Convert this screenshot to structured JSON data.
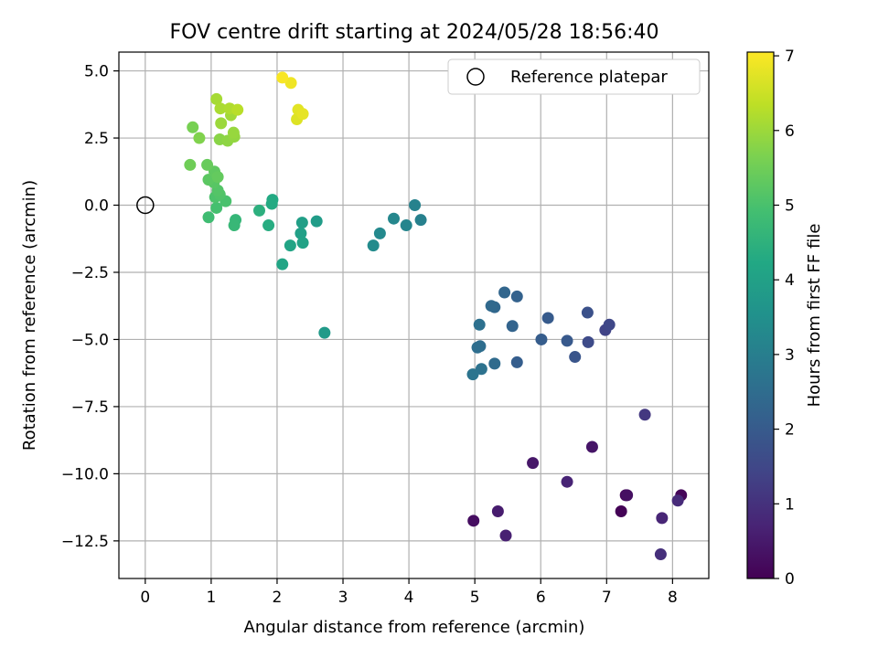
{
  "chart_data": {
    "type": "scatter",
    "title": "FOV centre drift starting at 2024/05/28 18:56:40",
    "xlabel": "Angular distance from reference (arcmin)",
    "ylabel": "Rotation from reference (arcmin)",
    "xlim": [
      -0.4,
      8.55
    ],
    "ylim": [
      -13.9,
      5.7
    ],
    "xticks": [
      0,
      1,
      2,
      3,
      4,
      5,
      6,
      7,
      8
    ],
    "xtick_labels": [
      "0",
      "1",
      "2",
      "3",
      "4",
      "5",
      "6",
      "7",
      "8"
    ],
    "yticks": [
      5.0,
      2.5,
      0.0,
      -2.5,
      -5.0,
      -7.5,
      -10.0,
      -12.5
    ],
    "ytick_labels": [
      "5.0",
      "2.5",
      "0.0",
      "−2.5",
      "−5.0",
      "−7.5",
      "−10.0",
      "−12.5"
    ],
    "grid": true,
    "legend": {
      "placement": "upper-right",
      "entries": [
        "Reference platepar"
      ]
    },
    "reference_point": {
      "x": 0,
      "y": 0,
      "label": "Reference platepar"
    },
    "colorbar": {
      "label": "Hours from first FF file",
      "colormap": "viridis",
      "range": [
        0,
        7.05
      ],
      "ticks": [
        0,
        1,
        2,
        3,
        4,
        5,
        6,
        7
      ],
      "tick_labels": [
        "0",
        "1",
        "2",
        "3",
        "4",
        "5",
        "6",
        "7"
      ]
    },
    "points": [
      {
        "x": 7.22,
        "y": -11.4,
        "c": 0.05
      },
      {
        "x": 8.13,
        "y": -10.8,
        "c": 0.1
      },
      {
        "x": 7.29,
        "y": -10.8,
        "c": 0.15
      },
      {
        "x": 4.98,
        "y": -11.75,
        "c": 0.25
      },
      {
        "x": 7.31,
        "y": -10.8,
        "c": 0.3
      },
      {
        "x": 6.78,
        "y": -9.0,
        "c": 0.4
      },
      {
        "x": 5.88,
        "y": -9.6,
        "c": 0.45
      },
      {
        "x": 5.35,
        "y": -11.4,
        "c": 0.55
      },
      {
        "x": 5.47,
        "y": -12.3,
        "c": 0.65
      },
      {
        "x": 6.4,
        "y": -10.3,
        "c": 0.7
      },
      {
        "x": 7.84,
        "y": -11.65,
        "c": 0.75
      },
      {
        "x": 8.08,
        "y": -11.0,
        "c": 0.85
      },
      {
        "x": 7.82,
        "y": -13.0,
        "c": 0.95
      },
      {
        "x": 7.58,
        "y": -7.8,
        "c": 1.15
      },
      {
        "x": 6.98,
        "y": -4.65,
        "c": 1.4
      },
      {
        "x": 7.04,
        "y": -4.45,
        "c": 1.5
      },
      {
        "x": 6.72,
        "y": -5.1,
        "c": 1.6
      },
      {
        "x": 6.71,
        "y": -4.0,
        "c": 1.75
      },
      {
        "x": 6.52,
        "y": -5.65,
        "c": 1.85
      },
      {
        "x": 6.4,
        "y": -5.05,
        "c": 1.95
      },
      {
        "x": 6.11,
        "y": -4.2,
        "c": 2.0
      },
      {
        "x": 6.01,
        "y": -5.0,
        "c": 2.05
      },
      {
        "x": 5.64,
        "y": -5.85,
        "c": 2.1
      },
      {
        "x": 5.64,
        "y": -3.4,
        "c": 2.2
      },
      {
        "x": 5.57,
        "y": -4.5,
        "c": 2.25
      },
      {
        "x": 5.45,
        "y": -3.25,
        "c": 2.3
      },
      {
        "x": 5.3,
        "y": -3.8,
        "c": 2.35
      },
      {
        "x": 5.25,
        "y": -3.75,
        "c": 2.4
      },
      {
        "x": 5.3,
        "y": -5.9,
        "c": 2.45
      },
      {
        "x": 5.08,
        "y": -5.25,
        "c": 2.5
      },
      {
        "x": 5.04,
        "y": -5.3,
        "c": 2.55
      },
      {
        "x": 5.07,
        "y": -4.45,
        "c": 2.6
      },
      {
        "x": 5.1,
        "y": -6.1,
        "c": 2.65
      },
      {
        "x": 4.97,
        "y": -6.3,
        "c": 2.7
      },
      {
        "x": 4.18,
        "y": -0.55,
        "c": 3.05
      },
      {
        "x": 4.09,
        "y": 0.0,
        "c": 3.1
      },
      {
        "x": 3.96,
        "y": -0.75,
        "c": 3.2
      },
      {
        "x": 3.77,
        "y": -0.5,
        "c": 3.25
      },
      {
        "x": 3.56,
        "y": -1.05,
        "c": 3.3
      },
      {
        "x": 3.46,
        "y": -1.5,
        "c": 3.35
      },
      {
        "x": 2.72,
        "y": -4.75,
        "c": 3.8
      },
      {
        "x": 2.6,
        "y": -0.6,
        "c": 3.85
      },
      {
        "x": 2.38,
        "y": -0.65,
        "c": 3.95
      },
      {
        "x": 2.36,
        "y": -1.05,
        "c": 4.0
      },
      {
        "x": 2.39,
        "y": -1.4,
        "c": 4.05
      },
      {
        "x": 2.2,
        "y": -1.5,
        "c": 4.1
      },
      {
        "x": 2.08,
        "y": -2.2,
        "c": 4.15
      },
      {
        "x": 1.93,
        "y": 0.2,
        "c": 4.25
      },
      {
        "x": 1.92,
        "y": 0.05,
        "c": 4.3
      },
      {
        "x": 1.87,
        "y": -0.75,
        "c": 4.35
      },
      {
        "x": 1.73,
        "y": -0.2,
        "c": 4.45
      },
      {
        "x": 1.37,
        "y": -0.55,
        "c": 4.65
      },
      {
        "x": 1.35,
        "y": -0.75,
        "c": 4.7
      },
      {
        "x": 0.96,
        "y": -0.45,
        "c": 4.85
      },
      {
        "x": 1.08,
        "y": -0.1,
        "c": 4.95
      },
      {
        "x": 1.22,
        "y": 0.15,
        "c": 5.0
      },
      {
        "x": 1.06,
        "y": 0.3,
        "c": 5.05
      },
      {
        "x": 1.13,
        "y": 0.4,
        "c": 5.1
      },
      {
        "x": 1.1,
        "y": 0.55,
        "c": 5.15
      },
      {
        "x": 1.04,
        "y": 0.85,
        "c": 5.2
      },
      {
        "x": 0.96,
        "y": 0.95,
        "c": 5.25
      },
      {
        "x": 1.05,
        "y": 1.25,
        "c": 5.3
      },
      {
        "x": 1.1,
        "y": 1.05,
        "c": 5.35
      },
      {
        "x": 0.94,
        "y": 1.5,
        "c": 5.4
      },
      {
        "x": 0.68,
        "y": 1.5,
        "c": 5.5
      },
      {
        "x": 0.72,
        "y": 2.9,
        "c": 5.6
      },
      {
        "x": 0.82,
        "y": 2.5,
        "c": 5.7
      },
      {
        "x": 1.13,
        "y": 2.45,
        "c": 5.8
      },
      {
        "x": 1.25,
        "y": 2.4,
        "c": 5.85
      },
      {
        "x": 1.35,
        "y": 2.55,
        "c": 5.9
      },
      {
        "x": 1.34,
        "y": 2.7,
        "c": 5.95
      },
      {
        "x": 1.15,
        "y": 3.05,
        "c": 6.0
      },
      {
        "x": 1.3,
        "y": 3.35,
        "c": 6.05
      },
      {
        "x": 1.08,
        "y": 3.95,
        "c": 6.1
      },
      {
        "x": 1.14,
        "y": 3.6,
        "c": 6.15
      },
      {
        "x": 1.28,
        "y": 3.6,
        "c": 6.2
      },
      {
        "x": 1.4,
        "y": 3.55,
        "c": 6.3
      },
      {
        "x": 2.3,
        "y": 3.2,
        "c": 6.7
      },
      {
        "x": 2.32,
        "y": 3.55,
        "c": 6.75
      },
      {
        "x": 2.39,
        "y": 3.4,
        "c": 6.8
      },
      {
        "x": 2.21,
        "y": 4.55,
        "c": 6.9
      },
      {
        "x": 2.08,
        "y": 4.75,
        "c": 7.0
      }
    ]
  }
}
